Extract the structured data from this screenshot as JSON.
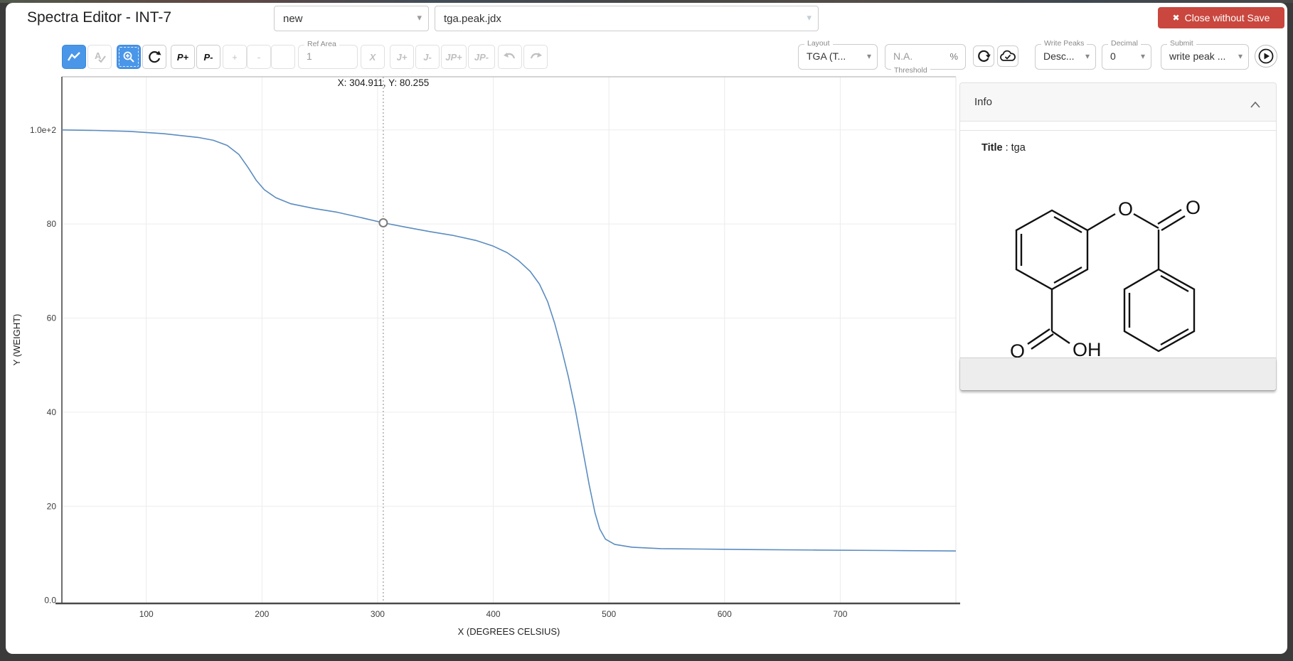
{
  "window": {
    "title": "Spectra Editor - INT-7",
    "close_label": "Close without Save"
  },
  "header": {
    "spectrum_select_value": "new",
    "file_select_value": "tga.peak.jdx"
  },
  "toolbar": {
    "peak_add": "P+",
    "peak_remove": "P-",
    "plus": "+",
    "minus": "-",
    "multiplier_x": "X",
    "ref_area": {
      "label": "Ref Area",
      "value": "1"
    },
    "j_plus": "J+",
    "j_minus": "J-",
    "jp_plus": "JP+",
    "jp_minus": "JP-",
    "layout": {
      "label": "Layout",
      "value": "TGA (T..."
    },
    "threshold": {
      "label": "Threshold",
      "placeholder": "N.A.",
      "unit": "%"
    },
    "write_peaks": {
      "label": "Write Peaks",
      "value": "Desc..."
    },
    "decimal": {
      "label": "Decimal",
      "value": "0"
    },
    "submit": {
      "label": "Submit",
      "value": "write peak ..."
    }
  },
  "info_panel": {
    "header": "Info",
    "title_label": "Title",
    "title_separator": " : ",
    "title_value": "tga",
    "molecule": {
      "atom_labels": {
        "ester_o": "O",
        "carbonyl_o": "O",
        "acid_o": "O",
        "acid_oh": "OH"
      }
    }
  },
  "colors": {
    "accent_blue": "#4a96e8",
    "danger_red": "#c9473e",
    "curve_blue": "#5b8cc0"
  },
  "chart_data": {
    "type": "line",
    "xlabel": "X (DEGREES CELSIUS)",
    "ylabel": "Y (WEIGHT)",
    "xlim": [
      27,
      800
    ],
    "ylim": [
      -0.5,
      111.3
    ],
    "grid": true,
    "x_ticks": [
      {
        "v": 100,
        "label": "100"
      },
      {
        "v": 200,
        "label": "200"
      },
      {
        "v": 300,
        "label": "300"
      },
      {
        "v": 400,
        "label": "400"
      },
      {
        "v": 500,
        "label": "500"
      },
      {
        "v": 600,
        "label": "600"
      },
      {
        "v": 700,
        "label": "700"
      }
    ],
    "y_ticks": [
      {
        "v": 100,
        "label": "1.0e+2"
      },
      {
        "v": 80,
        "label": "80"
      },
      {
        "v": 60,
        "label": "60"
      },
      {
        "v": 40,
        "label": "40"
      },
      {
        "v": 20,
        "label": "20"
      },
      {
        "v": 0,
        "label": "0.0"
      }
    ],
    "cursor": {
      "x": 304.911,
      "y": 80.255,
      "annotation": "X: 304.911, Y: 80.255"
    },
    "series": [
      {
        "name": "tga",
        "color": "#5b8cc0",
        "points": [
          [
            27,
            100
          ],
          [
            55,
            99.9
          ],
          [
            85,
            99.7
          ],
          [
            115,
            99.2
          ],
          [
            145,
            98.4
          ],
          [
            158,
            97.8
          ],
          [
            170,
            96.7
          ],
          [
            180,
            94.8
          ],
          [
            188,
            92.0
          ],
          [
            195,
            89.3
          ],
          [
            202,
            87.3
          ],
          [
            212,
            85.6
          ],
          [
            225,
            84.3
          ],
          [
            245,
            83.3
          ],
          [
            265,
            82.5
          ],
          [
            285,
            81.4
          ],
          [
            304.911,
            80.255
          ],
          [
            325,
            79.3
          ],
          [
            345,
            78.4
          ],
          [
            365,
            77.6
          ],
          [
            385,
            76.5
          ],
          [
            400,
            75.3
          ],
          [
            412,
            73.9
          ],
          [
            422,
            72.2
          ],
          [
            432,
            69.9
          ],
          [
            440,
            67.2
          ],
          [
            447,
            63.5
          ],
          [
            453,
            59.0
          ],
          [
            459,
            53.5
          ],
          [
            465,
            47.5
          ],
          [
            471,
            40.5
          ],
          [
            477,
            32.5
          ],
          [
            483,
            24.5
          ],
          [
            488,
            18.6
          ],
          [
            492,
            15.2
          ],
          [
            497,
            13.0
          ],
          [
            505,
            11.9
          ],
          [
            520,
            11.3
          ],
          [
            545,
            11.0
          ],
          [
            580,
            10.9
          ],
          [
            620,
            10.8
          ],
          [
            680,
            10.7
          ],
          [
            740,
            10.6
          ],
          [
            800,
            10.5
          ]
        ]
      }
    ]
  }
}
